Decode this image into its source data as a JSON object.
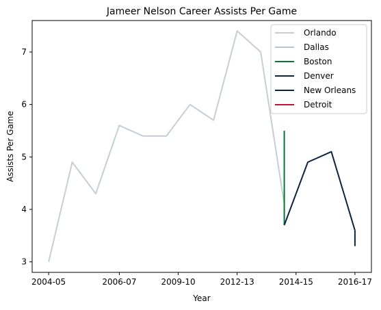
{
  "chart_data": {
    "type": "line",
    "title": "Jameer Nelson Career Assists Per Game",
    "xlabel": "Year",
    "ylabel": "Assists Per Game",
    "x_tick_labels": [
      "2004-05",
      "2006-07",
      "2009-10",
      "2012-13",
      "2014-15",
      "2016-17"
    ],
    "x_tick_positions": [
      0,
      3,
      5.5,
      8,
      10.5,
      13
    ],
    "y_ticks": [
      3,
      4,
      5,
      6,
      7
    ],
    "xlim": [
      -0.7,
      13.7
    ],
    "ylim": [
      2.8,
      7.6
    ],
    "grid": false,
    "legend_position": "top-right",
    "series": [
      {
        "name": "Orlando",
        "color": "#c4ced4",
        "points": [
          [
            0,
            3.0
          ],
          [
            1,
            4.9
          ],
          [
            2,
            4.3
          ],
          [
            3,
            5.6
          ],
          [
            4,
            5.4
          ],
          [
            5,
            5.4
          ],
          [
            6,
            6.0
          ],
          [
            7,
            5.7
          ],
          [
            8,
            7.4
          ],
          [
            9,
            7.0
          ],
          [
            10,
            4.1
          ]
        ]
      },
      {
        "name": "Dallas",
        "color": "#bbc4ca",
        "points": [
          [
            10,
            4.1
          ],
          [
            10,
            4.1
          ]
        ]
      },
      {
        "name": "Boston",
        "color": "#007a33",
        "points": [
          [
            10,
            5.5
          ],
          [
            10,
            3.7
          ]
        ]
      },
      {
        "name": "Denver",
        "color": "#0e2240",
        "points": [
          [
            10,
            3.7
          ],
          [
            11,
            4.9
          ],
          [
            12,
            5.1
          ],
          [
            13,
            3.6
          ]
        ]
      },
      {
        "name": "New Orleans",
        "color": "#0c2340",
        "points": [
          [
            13,
            3.6
          ],
          [
            13,
            3.3
          ]
        ]
      },
      {
        "name": "Detroit",
        "color": "#c8102e",
        "points": []
      }
    ]
  }
}
